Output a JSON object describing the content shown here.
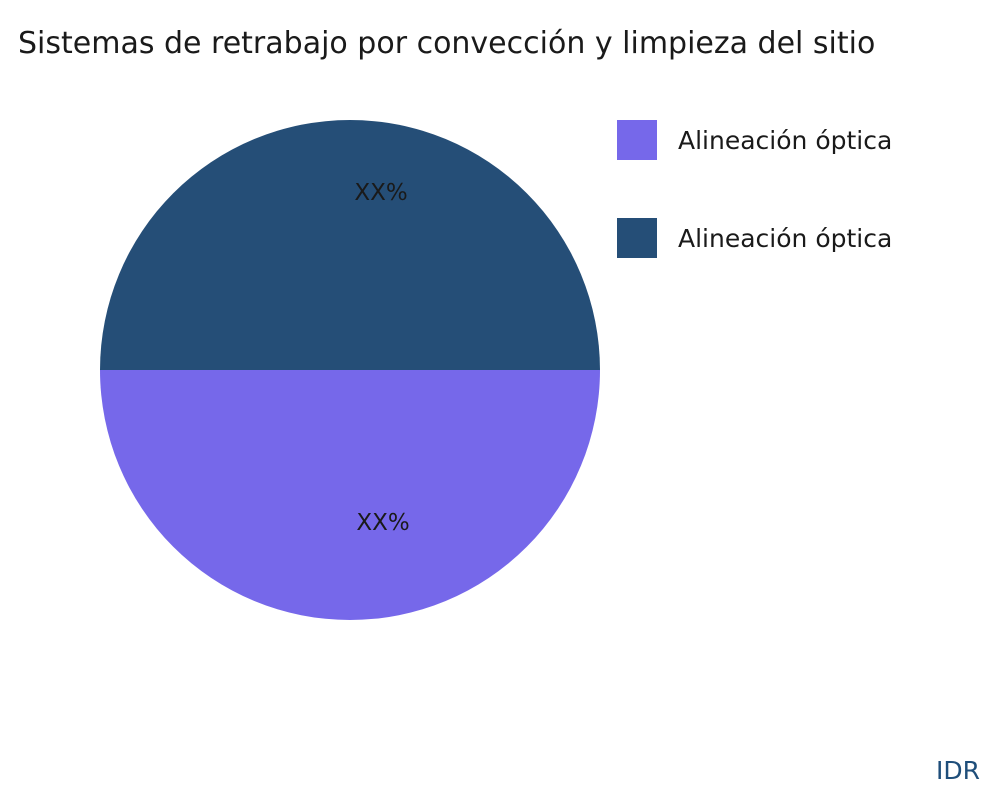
{
  "watermark": "IDR",
  "chart_data": {
    "type": "pie",
    "title": "Sistemas de retrabajo por convección y limpieza del sitio",
    "labels": [
      "Alineación óptica",
      "Alineación óptica"
    ],
    "values": [
      50,
      50
    ],
    "value_labels": [
      "XX%",
      "XX%"
    ],
    "colors": [
      "#7668ea",
      "#254e77"
    ],
    "slice_positions": [
      "bottom",
      "top"
    ],
    "legend_position": "upper right",
    "start_angle_deg": 90,
    "direction": "clockwise"
  }
}
